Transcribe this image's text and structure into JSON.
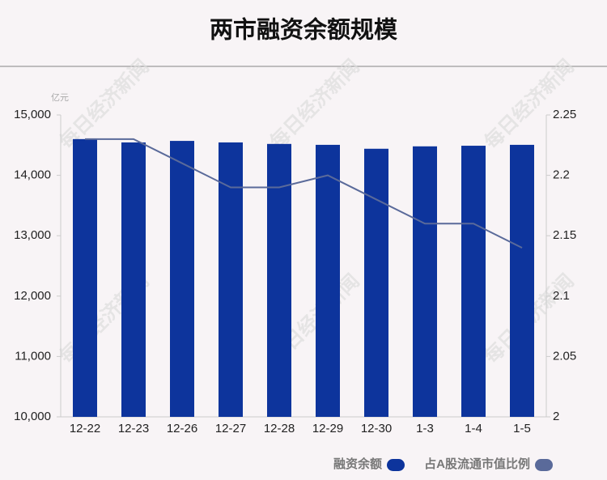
{
  "title": "两市融资余额规模",
  "watermark": "每日经济新闻",
  "chart_data": {
    "type": "bar",
    "y_unit": "亿元",
    "categories": [
      "12-22",
      "12-23",
      "12-26",
      "12-27",
      "12-28",
      "12-29",
      "12-30",
      "1-3",
      "1-4",
      "1-5"
    ],
    "series": [
      {
        "name": "融资余额",
        "type": "bar",
        "color": "#0d349c",
        "values": [
          14600,
          14545,
          14570,
          14545,
          14520,
          14505,
          14440,
          14480,
          14490,
          14505
        ]
      },
      {
        "name": "占A股流通市值比例",
        "type": "line",
        "axis": "y2",
        "color": "#5a6a9a",
        "values": [
          2.23,
          2.23,
          2.21,
          2.19,
          2.19,
          2.2,
          2.18,
          2.16,
          2.16,
          2.14
        ]
      }
    ],
    "ylim": [
      10000,
      15000
    ],
    "yticks": [
      {
        "value": 10000,
        "label": "10,000"
      },
      {
        "value": 11000,
        "label": "11,000"
      },
      {
        "value": 12000,
        "label": "12,000"
      },
      {
        "value": 13000,
        "label": "13,000"
      },
      {
        "value": 14000,
        "label": "14,000"
      },
      {
        "value": 15000,
        "label": "15,000"
      }
    ],
    "y2lim": [
      2,
      2.25
    ],
    "y2ticks": [
      2,
      2.05,
      2.1,
      2.15,
      2.2,
      2.25
    ]
  }
}
